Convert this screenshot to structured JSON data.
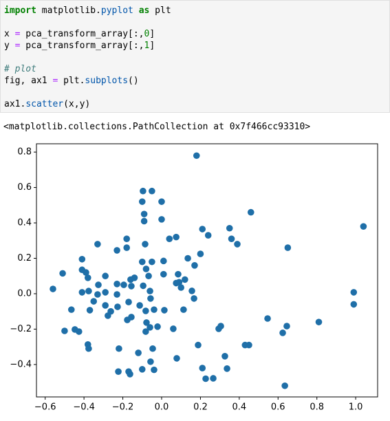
{
  "code": {
    "lines": [
      [
        {
          "text": "import",
          "color": "#008000",
          "weight": "bold"
        },
        {
          "text": " matplotlib."
        },
        {
          "text": "pyplot",
          "color": "#0055aa"
        },
        {
          "text": " "
        },
        {
          "text": "as",
          "color": "#008000",
          "weight": "bold"
        },
        {
          "text": " plt"
        }
      ],
      [],
      [
        {
          "text": "x "
        },
        {
          "text": "=",
          "color": "#aa22ff"
        },
        {
          "text": " pca_transform_array[:,"
        },
        {
          "text": "0",
          "color": "#008000"
        },
        {
          "text": "]"
        }
      ],
      [
        {
          "text": "y "
        },
        {
          "text": "=",
          "color": "#aa22ff"
        },
        {
          "text": " pca_transform_array[:,"
        },
        {
          "text": "1",
          "color": "#008000"
        },
        {
          "text": "]"
        }
      ],
      [],
      [
        {
          "text": "# plot",
          "color": "#3d7b7b",
          "style": "italic"
        }
      ],
      [
        {
          "text": "fig, ax1 "
        },
        {
          "text": "=",
          "color": "#aa22ff"
        },
        {
          "text": " plt."
        },
        {
          "text": "subplots",
          "color": "#0055aa"
        },
        {
          "text": "()"
        }
      ],
      [],
      [
        {
          "text": "ax1."
        },
        {
          "text": "scatter",
          "color": "#0055aa"
        },
        {
          "text": "(x,y)"
        }
      ]
    ]
  },
  "output": {
    "text": "<matplotlib.collections.PathCollection at 0x7f466cc93310>"
  },
  "chart_data": {
    "type": "scatter",
    "color": "#1f6fa8",
    "x": [
      0.18,
      -0.096,
      -0.05,
      -0.1,
      0.0,
      -0.09,
      -0.09,
      0.0,
      0.46,
      1.04,
      0.21,
      0.24,
      0.35,
      0.36,
      0.39,
      0.65,
      -0.33,
      -0.18,
      -0.18,
      -0.23,
      -0.085,
      0.04,
      0.075,
      0.2,
      0.135,
      0.17,
      -0.41,
      -0.41,
      -0.39,
      -0.51,
      -0.1,
      -0.05,
      0.01,
      -0.08,
      -0.29,
      -0.38,
      0.01,
      0.085,
      0.09,
      0.075,
      0.1,
      0.12,
      -0.16,
      -0.14,
      -0.095,
      -0.067,
      -0.06,
      -0.057,
      -0.195,
      -0.23,
      -0.156,
      -0.326,
      -0.41,
      -0.376,
      -0.33,
      -0.29,
      -0.23,
      -0.56,
      0.156,
      0.167,
      0.99,
      0.99,
      -0.35,
      -0.29,
      -0.37,
      -0.465,
      -0.17,
      -0.227,
      -0.113,
      -0.039,
      0.014,
      -0.082,
      0.113,
      -0.262,
      -0.277,
      -0.156,
      -0.177,
      -0.078,
      -0.06,
      -0.021,
      -0.082,
      0.06,
      0.305,
      0.294,
      0.546,
      0.645,
      0.624,
      0.81,
      -0.447,
      -0.426,
      -0.5,
      -0.38,
      -0.376,
      -0.22,
      -0.046,
      -0.12,
      0.188,
      0.43,
      0.45,
      0.078,
      0.326,
      -0.057,
      0.337,
      0.21,
      -0.039,
      -0.1,
      -0.223,
      -0.17,
      -0.163,
      0.227,
      0.266,
      0.635
    ],
    "values": [
      0.78,
      0.58,
      0.58,
      0.52,
      0.52,
      0.45,
      0.41,
      0.42,
      0.46,
      0.38,
      0.365,
      0.33,
      0.37,
      0.31,
      0.28,
      0.26,
      0.28,
      0.31,
      0.26,
      0.245,
      0.28,
      0.31,
      0.32,
      0.225,
      0.2,
      0.16,
      0.195,
      0.135,
      0.12,
      0.115,
      0.18,
      0.18,
      0.185,
      0.14,
      0.1,
      0.09,
      0.11,
      0.11,
      0.065,
      0.06,
      0.035,
      0.08,
      0.08,
      0.09,
      0.045,
      0.1,
      0.015,
      -0.027,
      0.05,
      0.055,
      0.043,
      0.05,
      0.008,
      0.015,
      -0.004,
      0.008,
      -0.004,
      0.027,
      0.016,
      -0.027,
      0.008,
      -0.06,
      -0.043,
      -0.066,
      -0.093,
      -0.09,
      -0.047,
      -0.074,
      -0.066,
      -0.09,
      -0.093,
      -0.097,
      -0.09,
      -0.1,
      -0.124,
      -0.132,
      -0.148,
      -0.163,
      -0.19,
      -0.186,
      -0.214,
      -0.198,
      -0.183,
      -0.198,
      -0.14,
      -0.183,
      -0.221,
      -0.16,
      -0.202,
      -0.214,
      -0.21,
      -0.287,
      -0.31,
      -0.31,
      -0.31,
      -0.334,
      -0.29,
      -0.29,
      -0.29,
      -0.365,
      -0.353,
      -0.384,
      -0.423,
      -0.42,
      -0.43,
      -0.427,
      -0.44,
      -0.44,
      -0.454,
      -0.48,
      -0.478,
      -0.52
    ],
    "xlim": [
      -0.645,
      1.113
    ],
    "ylim": [
      -0.583,
      0.847
    ],
    "xticks": [
      {
        "value": -0.6,
        "label": "−0.6"
      },
      {
        "value": -0.4,
        "label": "−0.4"
      },
      {
        "value": -0.2,
        "label": "−0.2"
      },
      {
        "value": 0,
        "label": "0.0"
      },
      0.2,
      0.4,
      0.6,
      0.8,
      {
        "value": 1,
        "label": "1.0"
      }
    ],
    "yticks": [
      {
        "value": -0.4,
        "label": "−0.4"
      },
      {
        "value": -0.2,
        "label": "−0.2"
      },
      {
        "value": 0,
        "label": "0.0"
      },
      0.2,
      0.4,
      0.6,
      0.8
    ]
  }
}
